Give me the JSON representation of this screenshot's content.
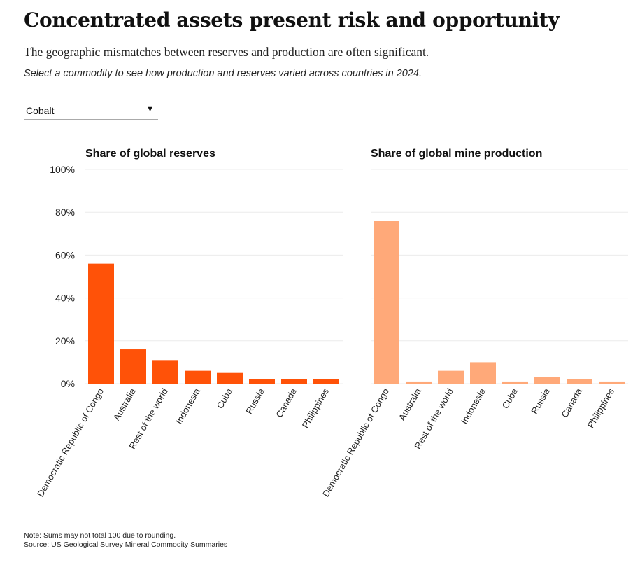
{
  "header": {
    "title": "Concentrated assets present risk and opportunity",
    "subtitle": "The geographic mismatches between reserves and production are often significant.",
    "instruction": "Select a commodity to see how production and reserves varied across countries in 2024."
  },
  "selector": {
    "selected": "Cobalt"
  },
  "chart_data": [
    {
      "type": "bar",
      "title": "Share of global reserves",
      "categories": [
        "Democratic Republic of Congo",
        "Australia",
        "Rest of the world",
        "Indonesia",
        "Cuba",
        "Russia",
        "Canada",
        "Philippines"
      ],
      "values": [
        56,
        16,
        11,
        6,
        5,
        2,
        2,
        2
      ],
      "ylim": [
        0,
        100
      ],
      "yticks": [
        0,
        20,
        40,
        60,
        80,
        100
      ],
      "ytick_labels": [
        "0%",
        "20%",
        "40%",
        "60%",
        "80%",
        "100%"
      ],
      "color": "#ff5208",
      "xlabel": "",
      "ylabel": ""
    },
    {
      "type": "bar",
      "title": "Share of global mine production",
      "categories": [
        "Democratic Republic of Congo",
        "Australia",
        "Rest of the world",
        "Indonesia",
        "Cuba",
        "Russia",
        "Canada",
        "Philippines"
      ],
      "values": [
        76,
        1,
        6,
        10,
        1,
        3,
        2,
        1
      ],
      "ylim": [
        0,
        100
      ],
      "yticks": [
        0,
        20,
        40,
        60,
        80,
        100
      ],
      "ytick_labels": [],
      "color": "#ffa979",
      "xlabel": "",
      "ylabel": ""
    }
  ],
  "footer": {
    "note": "Note: Sums may not total 100 due to rounding.",
    "source": "Source: US Geological Survey Mineral Commodity Summaries"
  }
}
